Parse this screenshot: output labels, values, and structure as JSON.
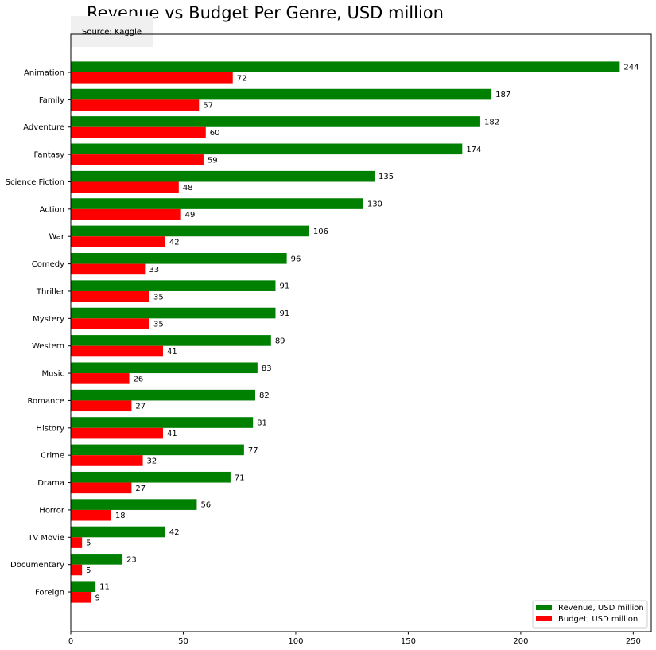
{
  "chart_data": {
    "type": "bar",
    "orientation": "horizontal",
    "title": "Revenue vs Budget Per Genre, USD million",
    "annotation": "Source: Kaggle",
    "xlabel": "",
    "ylabel": "",
    "xlim": [
      0,
      258
    ],
    "xticks": [
      0,
      50,
      100,
      150,
      200,
      250
    ],
    "grid": false,
    "legend_position": "lower-right",
    "categories": [
      "Animation",
      "Family",
      "Adventure",
      "Fantasy",
      "Science Fiction",
      "Action",
      "War",
      "Comedy",
      "Thriller",
      "Mystery",
      "Western",
      "Music",
      "Romance",
      "History",
      "Crime",
      "Drama",
      "Horror",
      "TV Movie",
      "Documentary",
      "Foreign"
    ],
    "series": [
      {
        "name": "Revenue, USD million",
        "color": "#008000",
        "values": [
          244,
          187,
          182,
          174,
          135,
          130,
          106,
          96,
          91,
          91,
          89,
          83,
          82,
          81,
          77,
          71,
          56,
          42,
          23,
          11
        ]
      },
      {
        "name": "Budget, USD million",
        "color": "#ff0000",
        "values": [
          72,
          57,
          60,
          59,
          48,
          49,
          42,
          33,
          35,
          35,
          41,
          26,
          27,
          41,
          32,
          27,
          18,
          5,
          5,
          9
        ]
      }
    ]
  }
}
